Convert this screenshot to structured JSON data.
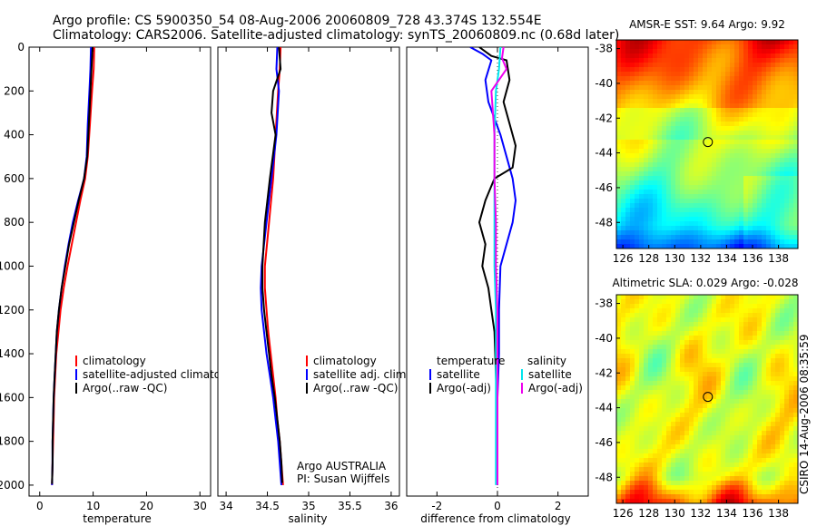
{
  "header": {
    "line1": "Argo profile: CS 5900350_54 08-Aug-2006 20060809_728 43.374S 132.554E",
    "line2": "Climatology: CARS2006. Satellite-adjusted climatology: synTS_20060809.nc (0.68d later)"
  },
  "credit": {
    "argo": "Argo AUSTRALIA",
    "pi": "PI: Susan Wijffels",
    "stamp": "CSIRO 14-Aug-2006 08:35:59"
  },
  "colors": {
    "climatology": "#ff0000",
    "satellite": "#0000ff",
    "argo": "#000000",
    "salinity_satellite": "#00e5ee",
    "salinity_argo": "#ee00ee"
  },
  "chart_data": [
    {
      "id": "temperature",
      "type": "line",
      "xlabel": "temperature",
      "ylabel": "",
      "xlim": [
        -2,
        32
      ],
      "ylim": [
        2050,
        0
      ],
      "xticks": [
        "0",
        "10",
        "20",
        "30"
      ],
      "xtick_values": [
        0,
        10,
        20,
        30
      ],
      "yticks": [
        "0",
        "200",
        "400",
        "600",
        "800",
        "1000",
        "1200",
        "1400",
        "1600",
        "1800",
        "2000"
      ],
      "ytick_values": [
        0,
        200,
        400,
        600,
        800,
        1000,
        1200,
        1400,
        1600,
        1800,
        2000
      ],
      "legend": {
        "placement": "lower-right",
        "entries": [
          "climatology",
          "satellite-adjusted climatology",
          "Argo(..raw -QC)"
        ]
      },
      "series": [
        {
          "name": "climatology",
          "color": "#ff0000",
          "points": [
            [
              10.2,
              0
            ],
            [
              10.1,
              100
            ],
            [
              9.8,
              200
            ],
            [
              9.4,
              350
            ],
            [
              9.0,
              500
            ],
            [
              8.5,
              600
            ],
            [
              7.6,
              700
            ],
            [
              6.8,
              800
            ],
            [
              6.0,
              900
            ],
            [
              5.2,
              1000
            ],
            [
              4.5,
              1100
            ],
            [
              3.9,
              1200
            ],
            [
              3.5,
              1300
            ],
            [
              3.1,
              1400
            ],
            [
              2.9,
              1500
            ],
            [
              2.7,
              1600
            ],
            [
              2.6,
              1700
            ],
            [
              2.5,
              1800
            ],
            [
              2.4,
              1900
            ],
            [
              2.3,
              2000
            ]
          ]
        },
        {
          "name": "satellite-adjusted climatology",
          "color": "#0000ff",
          "points": [
            [
              9.6,
              0
            ],
            [
              9.5,
              100
            ],
            [
              9.3,
              200
            ],
            [
              9.0,
              350
            ],
            [
              8.8,
              500
            ],
            [
              8.3,
              600
            ],
            [
              7.2,
              700
            ],
            [
              6.2,
              800
            ],
            [
              5.4,
              900
            ],
            [
              4.7,
              1000
            ],
            [
              4.1,
              1100
            ],
            [
              3.6,
              1200
            ],
            [
              3.2,
              1300
            ],
            [
              3.0,
              1400
            ],
            [
              2.8,
              1500
            ],
            [
              2.6,
              1600
            ],
            [
              2.5,
              1700
            ],
            [
              2.4,
              1800
            ],
            [
              2.4,
              1900
            ],
            [
              2.3,
              2000
            ]
          ]
        },
        {
          "name": "Argo(..raw -QC)",
          "color": "#000000",
          "points": [
            [
              9.9,
              0
            ],
            [
              9.7,
              100
            ],
            [
              9.5,
              200
            ],
            [
              9.2,
              350
            ],
            [
              8.9,
              500
            ],
            [
              8.3,
              600
            ],
            [
              7.3,
              700
            ],
            [
              6.4,
              800
            ],
            [
              5.5,
              900
            ],
            [
              4.8,
              1000
            ],
            [
              4.1,
              1100
            ],
            [
              3.6,
              1200
            ],
            [
              3.2,
              1300
            ],
            [
              3.0,
              1400
            ],
            [
              2.8,
              1500
            ],
            [
              2.6,
              1600
            ],
            [
              2.5,
              1700
            ],
            [
              2.4,
              1800
            ],
            [
              2.4,
              1900
            ],
            [
              2.3,
              1995
            ]
          ]
        }
      ]
    },
    {
      "id": "salinity",
      "type": "line",
      "xlabel": "salinity",
      "ylabel": "",
      "xlim": [
        33.9,
        36.1
      ],
      "ylim": [
        2050,
        0
      ],
      "xticks": [
        "34",
        "34.5",
        "35",
        "35.5",
        "36"
      ],
      "xtick_values": [
        34,
        34.5,
        35,
        35.5,
        36
      ],
      "legend": {
        "placement": "lower-right",
        "entries": [
          "climatology",
          "satellite adj. clim.",
          "Argo(..raw -QC)"
        ]
      },
      "series": [
        {
          "name": "climatology",
          "color": "#ff0000",
          "points": [
            [
              34.66,
              0
            ],
            [
              34.65,
              100
            ],
            [
              34.63,
              200
            ],
            [
              34.6,
              400
            ],
            [
              34.57,
              600
            ],
            [
              34.52,
              800
            ],
            [
              34.47,
              1000
            ],
            [
              34.47,
              1100
            ],
            [
              34.49,
              1200
            ],
            [
              34.51,
              1300
            ],
            [
              34.54,
              1400
            ],
            [
              34.57,
              1500
            ],
            [
              34.6,
              1600
            ],
            [
              34.62,
              1700
            ],
            [
              34.65,
              1800
            ],
            [
              34.67,
              1900
            ],
            [
              34.69,
              2000
            ]
          ]
        },
        {
          "name": "satellite adj. clim.",
          "color": "#0000ff",
          "points": [
            [
              34.62,
              0
            ],
            [
              34.61,
              100
            ],
            [
              34.64,
              200
            ],
            [
              34.61,
              400
            ],
            [
              34.55,
              600
            ],
            [
              34.49,
              800
            ],
            [
              34.43,
              1000
            ],
            [
              34.42,
              1100
            ],
            [
              34.43,
              1200
            ],
            [
              34.46,
              1300
            ],
            [
              34.49,
              1400
            ],
            [
              34.53,
              1500
            ],
            [
              34.57,
              1600
            ],
            [
              34.6,
              1700
            ],
            [
              34.63,
              1800
            ],
            [
              34.65,
              1900
            ],
            [
              34.67,
              2000
            ]
          ]
        },
        {
          "name": "Argo(..raw -QC)",
          "color": "#000000",
          "points": [
            [
              34.64,
              0
            ],
            [
              34.66,
              100
            ],
            [
              34.57,
              200
            ],
            [
              34.55,
              300
            ],
            [
              34.6,
              400
            ],
            [
              34.53,
              600
            ],
            [
              34.47,
              800
            ],
            [
              34.44,
              1000
            ],
            [
              34.44,
              1100
            ],
            [
              34.46,
              1200
            ],
            [
              34.49,
              1300
            ],
            [
              34.52,
              1400
            ],
            [
              34.55,
              1500
            ],
            [
              34.59,
              1600
            ],
            [
              34.62,
              1700
            ],
            [
              34.65,
              1800
            ],
            [
              34.67,
              1900
            ],
            [
              34.68,
              1990
            ]
          ]
        }
      ]
    },
    {
      "id": "difference",
      "type": "line",
      "xlabel": "difference from climatology",
      "ylabel": "",
      "xlim": [
        -3,
        3
      ],
      "ylim": [
        2050,
        0
      ],
      "xticks": [
        "-2",
        "0",
        "2"
      ],
      "xtick_values": [
        -2,
        0,
        2
      ],
      "legend": {
        "placement": "lower-right",
        "headers": [
          "temperature",
          "salinity"
        ],
        "entries": [
          "satellite",
          "Argo(-adj)",
          "satellite",
          "Argo(-adj)"
        ]
      },
      "series": [
        {
          "name": "satellite",
          "group": "temperature",
          "color": "#0000ff",
          "points": [
            [
              -0.9,
              0
            ],
            [
              -0.5,
              30
            ],
            [
              -0.2,
              60
            ],
            [
              -0.4,
              150
            ],
            [
              -0.3,
              250
            ],
            [
              0.1,
              400
            ],
            [
              0.3,
              500
            ],
            [
              0.5,
              600
            ],
            [
              0.6,
              700
            ],
            [
              0.5,
              800
            ],
            [
              0.3,
              900
            ],
            [
              0.1,
              1000
            ],
            [
              0.05,
              1200
            ],
            [
              0.05,
              1400
            ],
            [
              0.0,
              1600
            ],
            [
              0.0,
              1800
            ],
            [
              0.0,
              2000
            ]
          ]
        },
        {
          "name": "Argo(-adj)",
          "group": "temperature",
          "color": "#000000",
          "points": [
            [
              -0.6,
              0
            ],
            [
              -0.2,
              40
            ],
            [
              0.3,
              60
            ],
            [
              0.4,
              150
            ],
            [
              0.2,
              250
            ],
            [
              0.5,
              400
            ],
            [
              0.6,
              450
            ],
            [
              0.5,
              550
            ],
            [
              -0.1,
              600
            ],
            [
              -0.4,
              700
            ],
            [
              -0.6,
              800
            ],
            [
              -0.4,
              900
            ],
            [
              -0.5,
              1000
            ],
            [
              -0.3,
              1100
            ],
            [
              -0.2,
              1200
            ],
            [
              -0.1,
              1300
            ],
            [
              -0.05,
              1500
            ],
            [
              0.0,
              1700
            ],
            [
              0.0,
              2000
            ]
          ]
        },
        {
          "name": "satellite",
          "group": "salinity",
          "color": "#00e5ee",
          "points": [
            [
              0.1,
              0
            ],
            [
              0.05,
              100
            ],
            [
              -0.05,
              200
            ],
            [
              -0.1,
              400
            ],
            [
              -0.1,
              600
            ],
            [
              -0.1,
              800
            ],
            [
              -0.1,
              1000
            ],
            [
              -0.05,
              1200
            ],
            [
              -0.05,
              1400
            ],
            [
              -0.05,
              1600
            ],
            [
              -0.05,
              1800
            ],
            [
              -0.05,
              2000
            ]
          ]
        },
        {
          "name": "Argo(-adj)",
          "group": "salinity",
          "color": "#ee00ee",
          "points": [
            [
              0.2,
              0
            ],
            [
              0.15,
              50
            ],
            [
              0.3,
              100
            ],
            [
              -0.2,
              200
            ],
            [
              -0.1,
              400
            ],
            [
              -0.1,
              600
            ],
            [
              -0.05,
              800
            ],
            [
              -0.05,
              1000
            ],
            [
              0.0,
              1200
            ],
            [
              0.0,
              1400
            ],
            [
              0.0,
              1600
            ],
            [
              0.0,
              1800
            ],
            [
              0.0,
              2000
            ]
          ]
        }
      ]
    },
    {
      "id": "sst-map",
      "type": "heatmap",
      "title": "AMSR-E SST: 9.64  Argo: 9.92",
      "xticks": [
        "126",
        "128",
        "130",
        "132",
        "134",
        "136",
        "138"
      ],
      "yticks": [
        "-38",
        "-40",
        "-42",
        "-44",
        "-46",
        "-48"
      ],
      "xlim": [
        125.5,
        139.5
      ],
      "ylim": [
        -49.5,
        -37.5
      ],
      "colormap": "jet",
      "marker": {
        "lon": 132.554,
        "lat": -43.374
      }
    },
    {
      "id": "sla-map",
      "type": "heatmap",
      "title": "Altimetric SLA: 0.029  Argo: -0.028",
      "xticks": [
        "126",
        "128",
        "130",
        "132",
        "134",
        "136",
        "138"
      ],
      "yticks": [
        "-38",
        "-40",
        "-42",
        "-44",
        "-46",
        "-48"
      ],
      "xlim": [
        125.5,
        139.5
      ],
      "ylim": [
        -49.5,
        -37.5
      ],
      "colormap": "jet",
      "marker": {
        "lon": 132.554,
        "lat": -43.374
      }
    }
  ]
}
